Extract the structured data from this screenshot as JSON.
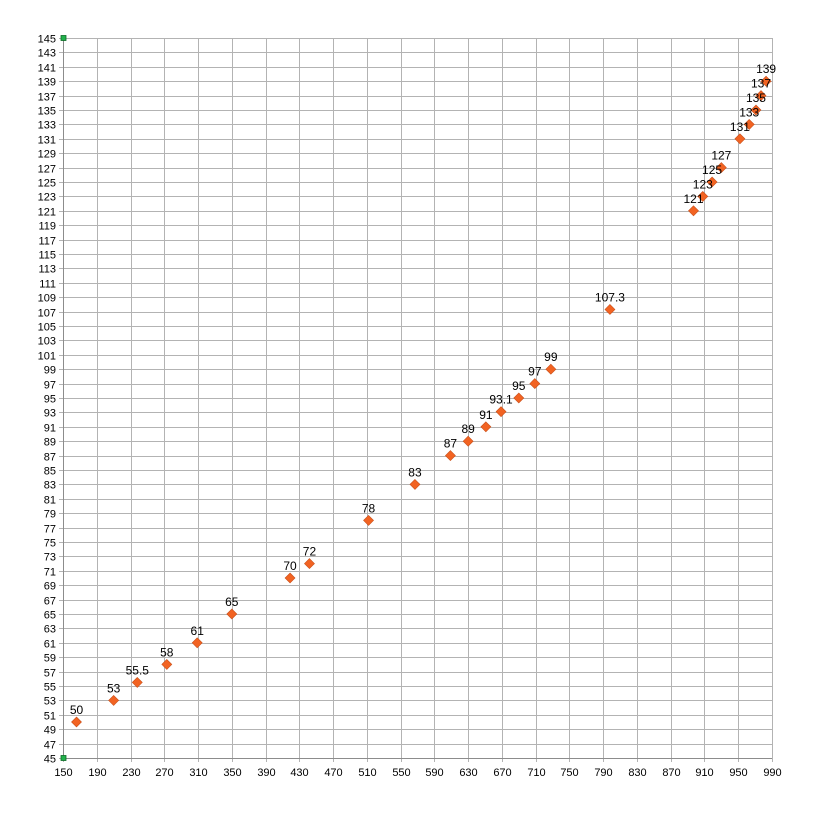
{
  "chart_data": {
    "type": "scatter",
    "title": "",
    "xlabel": "",
    "ylabel": "",
    "xlim": [
      150,
      990
    ],
    "ylim": [
      45,
      145
    ],
    "x_ticks": [
      150,
      190,
      230,
      270,
      310,
      350,
      390,
      430,
      470,
      510,
      550,
      590,
      630,
      670,
      710,
      750,
      790,
      830,
      870,
      910,
      950,
      990
    ],
    "y_ticks": [
      45,
      47,
      49,
      51,
      53,
      55,
      57,
      59,
      61,
      63,
      65,
      67,
      69,
      71,
      73,
      75,
      77,
      79,
      81,
      83,
      85,
      87,
      89,
      91,
      93,
      95,
      97,
      99,
      101,
      103,
      105,
      107,
      109,
      111,
      113,
      115,
      117,
      119,
      121,
      123,
      125,
      127,
      129,
      131,
      133,
      135,
      137,
      139,
      141,
      143,
      145
    ],
    "grid": true,
    "legend": "none",
    "marker_color": "#f26322",
    "marker_stroke": "#c8501a",
    "corner_marker_color": "#22b14c",
    "series": [
      {
        "points": [
          {
            "x": 166,
            "y": 50,
            "label": "50"
          },
          {
            "x": 210,
            "y": 53,
            "label": "53"
          },
          {
            "x": 238,
            "y": 55.5,
            "label": "55.5"
          },
          {
            "x": 273,
            "y": 58,
            "label": "58"
          },
          {
            "x": 309,
            "y": 61,
            "label": "61"
          },
          {
            "x": 350,
            "y": 65,
            "label": "65"
          },
          {
            "x": 419,
            "y": 70,
            "label": "70"
          },
          {
            "x": 442,
            "y": 72,
            "label": "72"
          },
          {
            "x": 512,
            "y": 78,
            "label": "78"
          },
          {
            "x": 567,
            "y": 83,
            "label": "83"
          },
          {
            "x": 609,
            "y": 87,
            "label": "87"
          },
          {
            "x": 630,
            "y": 89,
            "label": "89"
          },
          {
            "x": 651,
            "y": 91,
            "label": "91"
          },
          {
            "x": 669,
            "y": 93.1,
            "label": "93.1"
          },
          {
            "x": 690,
            "y": 95,
            "label": "95"
          },
          {
            "x": 709,
            "y": 97,
            "label": "97"
          },
          {
            "x": 728,
            "y": 99,
            "label": "99"
          },
          {
            "x": 798,
            "y": 107.3,
            "label": "107.3"
          },
          {
            "x": 897,
            "y": 121,
            "label": "121"
          },
          {
            "x": 908,
            "y": 123,
            "label": "123"
          },
          {
            "x": 919,
            "y": 125,
            "label": "125"
          },
          {
            "x": 930,
            "y": 127,
            "label": "127"
          },
          {
            "x": 952,
            "y": 131,
            "label": "131"
          },
          {
            "x": 963,
            "y": 133,
            "label": "133"
          },
          {
            "x": 971,
            "y": 135,
            "label": "135"
          },
          {
            "x": 977,
            "y": 137,
            "label": "137"
          },
          {
            "x": 983,
            "y": 139,
            "label": "139"
          }
        ]
      }
    ]
  }
}
